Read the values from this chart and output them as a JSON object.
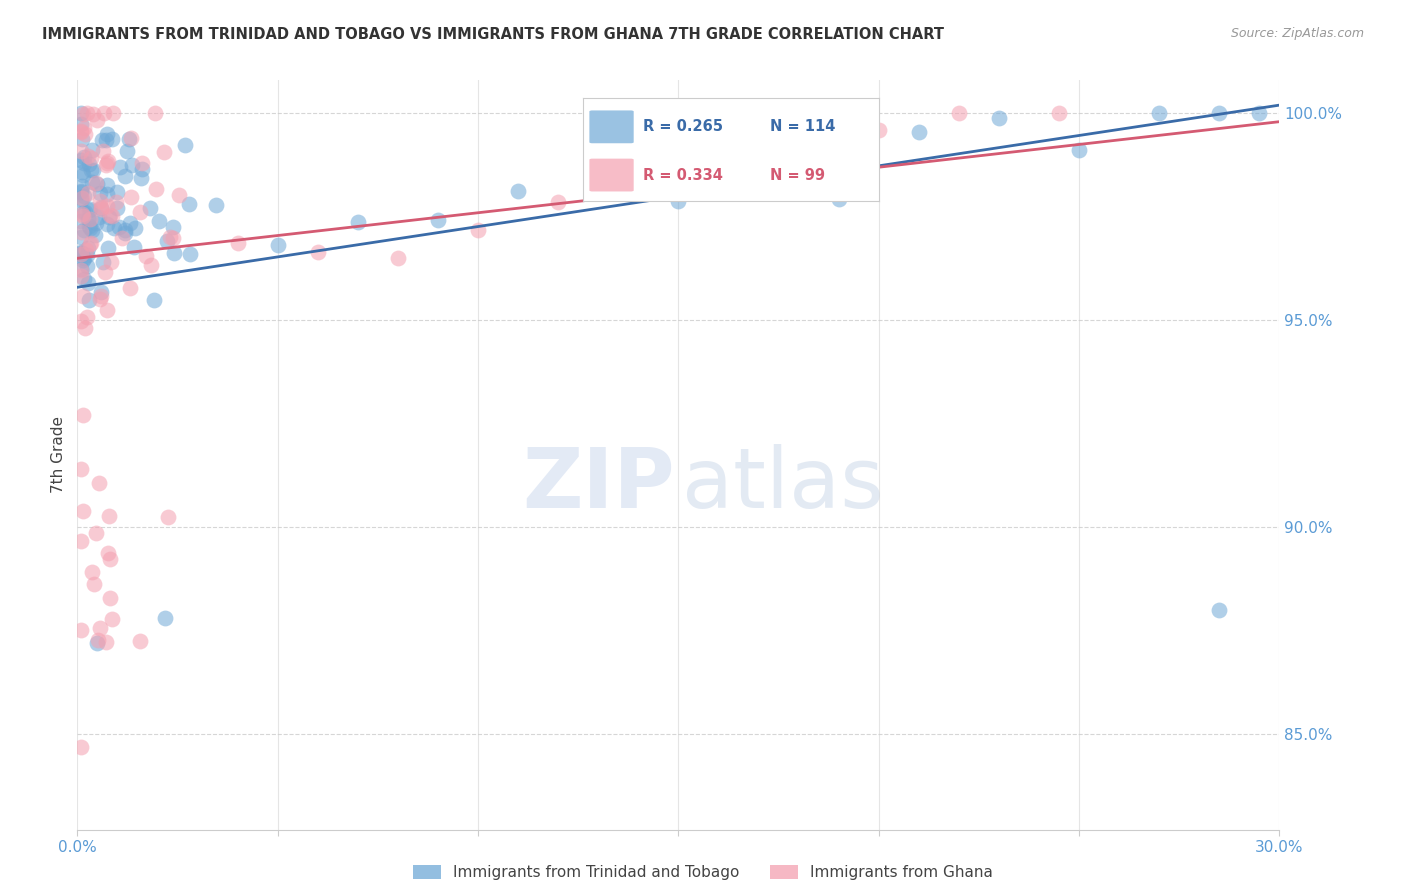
{
  "title": "IMMIGRANTS FROM TRINIDAD AND TOBAGO VS IMMIGRANTS FROM GHANA 7TH GRADE CORRELATION CHART",
  "source": "Source: ZipAtlas.com",
  "ylabel": "7th Grade",
  "ylabel_ticks": [
    "85.0%",
    "90.0%",
    "95.0%",
    "100.0%"
  ],
  "xlim": [
    0.0,
    0.3
  ],
  "ylim": [
    0.827,
    1.008
  ],
  "yticks": [
    0.85,
    0.9,
    0.95,
    1.0
  ],
  "xticks": [
    0.0,
    0.05,
    0.1,
    0.15,
    0.2,
    0.25,
    0.3
  ],
  "legend_blue_label": "Immigrants from Trinidad and Tobago",
  "legend_pink_label": "Immigrants from Ghana",
  "blue_R": 0.265,
  "blue_N": 114,
  "pink_R": 0.334,
  "pink_N": 99,
  "blue_color": "#6fa8d6",
  "pink_color": "#f4a0b0",
  "blue_line_color": "#3a6ba8",
  "pink_line_color": "#d45a72",
  "background_color": "#ffffff",
  "grid_color": "#cccccc",
  "title_color": "#333333",
  "axis_label_color": "#5b9bd5"
}
